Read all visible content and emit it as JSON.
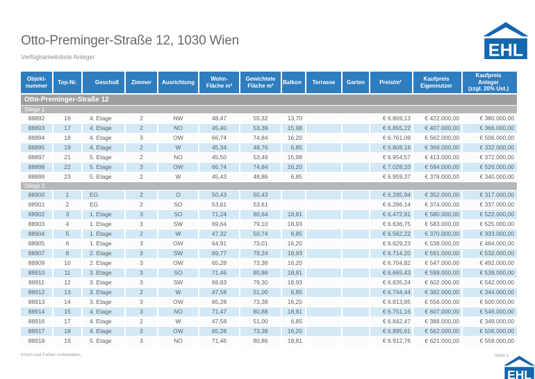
{
  "brand": {
    "logo_text": "EHL"
  },
  "page": {
    "title": "Otto-Preminger-Straße 12, 1030 Wien",
    "subtitle": "Verfügbarkeitsliste Anleger",
    "footer_note": "Irrtum und Fehler vorbehalten.",
    "page_label": "Seite 1"
  },
  "colors": {
    "header_blue": "#2f7dbe",
    "row_alt_blue": "#d3e9f6",
    "group_gray": "#9e9e9e",
    "stiege_gray": "#b7b7b7",
    "logo_blue": "#1466ad",
    "data_text": "#5d5e60"
  },
  "table": {
    "columns": [
      {
        "lines": [
          "Objekt-",
          "nummer"
        ]
      },
      {
        "lines": [
          "Top-Nr."
        ]
      },
      {
        "lines": [
          "Geschoß"
        ]
      },
      {
        "lines": [
          "Zimmer"
        ]
      },
      {
        "lines": [
          "Ausrichtung"
        ]
      },
      {
        "lines": [
          "Wohn-",
          "Fläche m²"
        ]
      },
      {
        "lines": [
          "Gewichtete",
          "Fläche m²"
        ]
      },
      {
        "lines": [
          "Balkon"
        ]
      },
      {
        "lines": [
          "Terrasse"
        ]
      },
      {
        "lines": [
          "Garten"
        ]
      },
      {
        "lines": [
          "Preis/m²"
        ]
      },
      {
        "lines": [
          "Kaufpreis",
          "Eigennutzer"
        ]
      },
      {
        "lines": [
          "Kaufpreis",
          "Anleger",
          "(zzgl. 20% Ust.)"
        ]
      }
    ],
    "group_title": "Otto-Preminger-Straße 12",
    "sections": [
      {
        "label": "Stiege 1",
        "rows": [
          [
            "88892",
            "16",
            "4. Etage",
            "2",
            "NW",
            "48,47",
            "55,32",
            "13,70",
            "",
            "",
            "€ 6.869,13",
            "€ 422.000,00",
            "€ 380.000,00"
          ],
          [
            "88893",
            "17",
            "4. Etage",
            "2",
            "NO",
            "45,40",
            "53,39",
            "15,98",
            "",
            "",
            "€ 6.855,22",
            "€ 407.000,00",
            "€ 366.000,00"
          ],
          [
            "88894",
            "18",
            "4. Etage",
            "3",
            "OW",
            "66,74",
            "74,84",
            "16,20",
            "",
            "",
            "€ 6.761,09",
            "€ 562.000,00",
            "€ 506.000,00"
          ],
          [
            "88895",
            "19",
            "4. Etage",
            "2",
            "W",
            "45,34",
            "48,76",
            "6,85",
            "",
            "",
            "€ 6.808,16",
            "€ 369.000,00",
            "€ 332.000,00"
          ],
          [
            "88897",
            "21",
            "5. Etage",
            "2",
            "NO",
            "45,50",
            "53,49",
            "15,98",
            "",
            "",
            "€ 6.954,57",
            "€ 413.000,00",
            "€ 372.000,00"
          ],
          [
            "88898",
            "22",
            "5. Etage",
            "3",
            "OW",
            "66,74",
            "74,84",
            "16,20",
            "",
            "",
            "€ 7.028,33",
            "€ 584.000,00",
            "€ 526.000,00"
          ],
          [
            "88899",
            "23",
            "5. Etage",
            "2",
            "W",
            "45,43",
            "48,86",
            "6,85",
            "",
            "",
            "€ 6.959,37",
            "€ 378.000,00",
            "€ 340.000,00"
          ]
        ]
      },
      {
        "label": "Stiege 2",
        "rows": [
          [
            "88900",
            "1",
            "EG",
            "2",
            "O",
            "50,43",
            "50,43",
            "",
            "",
            "",
            "€ 6.285,94",
            "€ 352.000,00",
            "€ 317.000,00"
          ],
          [
            "88901",
            "2",
            "EG",
            "2",
            "SO",
            "53,61",
            "53,61",
            "",
            "",
            "",
            "€ 6.286,14",
            "€ 374.000,00",
            "€ 337.000,00"
          ],
          [
            "88902",
            "3",
            "1. Etage",
            "3",
            "SO",
            "71,24",
            "80,64",
            "18,81",
            "",
            "",
            "€ 6.472,81",
            "€ 580.000,00",
            "€ 522.000,00"
          ],
          [
            "88903",
            "4",
            "1. Etage",
            "3",
            "SW",
            "69,64",
            "79,10",
            "18,93",
            "",
            "",
            "€ 6.636,75",
            "€ 583.000,00",
            "€ 525.000,00"
          ],
          [
            "88904",
            "5",
            "1. Etage",
            "2",
            "W",
            "47,32",
            "50,74",
            "6,85",
            "",
            "",
            "€ 6.562,22",
            "€ 370.000,00",
            "€ 333.000,00"
          ],
          [
            "88905",
            "6",
            "1. Etage",
            "3",
            "OW",
            "64,91",
            "73,01",
            "16,20",
            "",
            "",
            "€ 6.629,23",
            "€ 538.000,00",
            "€ 484.000,00"
          ],
          [
            "88907",
            "8",
            "2. Etage",
            "3",
            "SW",
            "69,77",
            "79,24",
            "18,93",
            "",
            "",
            "€ 6.714,20",
            "€ 591.000,00",
            "€ 532.000,00"
          ],
          [
            "88909",
            "10",
            "2. Etage",
            "3",
            "OW",
            "65,28",
            "73,38",
            "16,20",
            "",
            "",
            "€ 6.704,82",
            "€ 547.000,00",
            "€ 492.000,00"
          ],
          [
            "88910",
            "11",
            "3. Etage",
            "3",
            "SO",
            "71,46",
            "80,86",
            "18,81",
            "",
            "",
            "€ 6.665,43",
            "€ 599.000,00",
            "€ 539.000,00"
          ],
          [
            "88911",
            "12",
            "3. Etage",
            "3",
            "SW",
            "69,83",
            "79,30",
            "18,93",
            "",
            "",
            "€ 6.835,24",
            "€ 602.000,00",
            "€ 542.000,00"
          ],
          [
            "88912",
            "13",
            "3. Etage",
            "2",
            "W",
            "47,58",
            "51,00",
            "6,85",
            "",
            "",
            "€ 6.744,44",
            "€ 382.000,00",
            "€ 344.000,00"
          ],
          [
            "88913",
            "14",
            "3. Etage",
            "3",
            "OW",
            "65,28",
            "73,38",
            "16,20",
            "",
            "",
            "€ 6.813,85",
            "€ 556.000,00",
            "€ 500.000,00"
          ],
          [
            "88914",
            "15",
            "4. Etage",
            "3",
            "NO",
            "71,47",
            "80,88",
            "18,81",
            "",
            "",
            "€ 6.751,16",
            "€ 607.000,00",
            "€ 546.000,00"
          ],
          [
            "88916",
            "17",
            "4. Etage",
            "2",
            "W",
            "47,58",
            "51,00",
            "6,85",
            "",
            "",
            "€ 6.842,47",
            "€ 388.000,00",
            "€ 349.000,00"
          ],
          [
            "88917",
            "18",
            "4. Etage",
            "3",
            "OW",
            "65,28",
            "73,38",
            "16,20",
            "",
            "",
            "€ 6.895,61",
            "€ 562.000,00",
            "€ 506.000,00"
          ],
          [
            "88918",
            "19",
            "5. Etage",
            "3",
            "NO",
            "71,46",
            "80,86",
            "18,81",
            "",
            "",
            "€ 6.912,76",
            "€ 621.000,00",
            "€ 559.000,00"
          ]
        ]
      }
    ]
  }
}
